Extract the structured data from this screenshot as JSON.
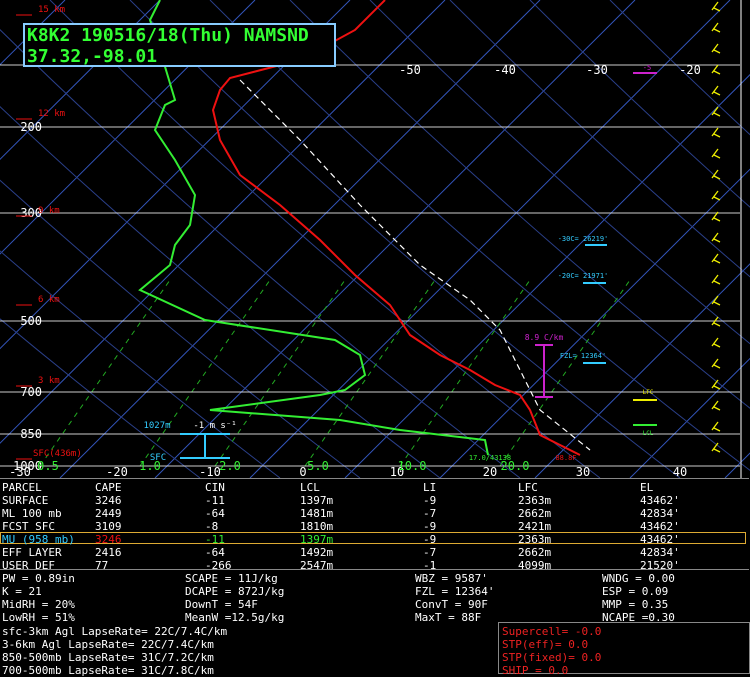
{
  "header": {
    "station": "K8K2 190516/18(Thu) NAMSND",
    "location": "37.32,-98.01"
  },
  "skewt": {
    "top_temps": [
      "-50",
      "-40",
      "-30",
      "-20"
    ],
    "bottom_temps": [
      "-30",
      "-20",
      "-10",
      "0",
      "10",
      "20",
      "30",
      "40"
    ],
    "pressures": [
      "200",
      "300",
      "500",
      "700",
      "850",
      "1000"
    ],
    "heights": [
      "15 km",
      "12 km",
      "9 km",
      "6 km",
      "3 km",
      "SFC(436m)"
    ],
    "mixing_ratios": [
      "0.5",
      "1.0",
      "2.0",
      "5.0",
      "10.0",
      "20.0"
    ],
    "annotations": {
      "storm_depth": "1027m",
      "storm_motion": "-1 m s⁻¹",
      "sfc": "SFC",
      "m30c": "-30C= 26219'",
      "m20c": "-20C= 21971'",
      "lapse": "8.9 C/km",
      "fzl": "FZL= 12364'",
      "lfc": "LFC",
      "lcl": "LCL",
      "el": "17.0/43138",
      "t_sfc": "88.8F",
      "top_marker": "-5"
    }
  },
  "parcel_table": {
    "header": [
      "PARCEL",
      "CAPE",
      "CIN",
      "LCL",
      "LI",
      "LFC",
      "EL"
    ],
    "rows": [
      [
        "SURFACE",
        "3246",
        "-11",
        "1397m",
        "-9",
        "2363m",
        "43462'"
      ],
      [
        "ML 100 mb",
        "2449",
        "-64",
        "1481m",
        "-7",
        "2662m",
        "42834'"
      ],
      [
        "FCST SFC",
        "3109",
        "-8",
        "1810m",
        "-9",
        "2421m",
        "43462'"
      ],
      [
        "MU (958 mb)",
        "3246",
        "-11",
        "1397m",
        "-9",
        "2363m",
        "43462'"
      ],
      [
        "EFF LAYER",
        "2416",
        "-64",
        "1492m",
        "-7",
        "2662m",
        "42834'"
      ],
      [
        "USER DEF",
        "77",
        "-266",
        "2547m",
        "-1",
        "4099m",
        "21520'"
      ]
    ]
  },
  "indices": {
    "rows": [
      [
        "PW = 0.89in",
        "SCAPE = 11J/kg",
        "WBZ = 9587'",
        "WNDG = 0.00"
      ],
      [
        "K = 21",
        "DCAPE = 872J/kg",
        "FZL = 12364'",
        "ESP = 0.09"
      ],
      [
        "MidRH = 20%",
        "DownT = 54F",
        "ConvT = 90F",
        "MMP = 0.35"
      ],
      [
        "LowRH = 51%",
        "MeanW =12.5g/kg",
        "MaxT = 88F",
        "NCAPE =0.30"
      ]
    ]
  },
  "lapse_rates": [
    "sfc-3km Agl LapseRate= 22C/7.4C/km",
    "3-6km Agl LapseRate= 22C/7.4C/km",
    "850-500mb LapseRate= 31C/7.2C/km",
    "700-500mb LapseRate= 31C/7.8C/km"
  ],
  "severe": [
    "Supercell= -0.0",
    "STP(eff)= 0.0",
    "STP(fixed)= 0.0",
    "SHIP = 0.0"
  ]
}
